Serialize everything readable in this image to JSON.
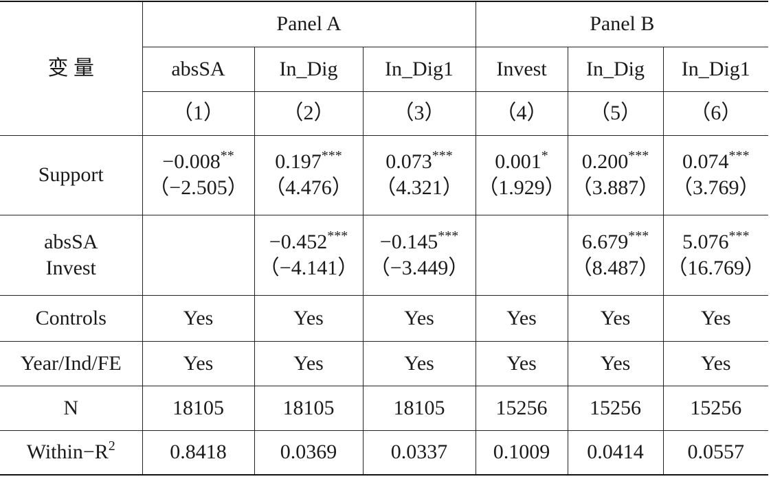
{
  "header": {
    "variable": "变 量",
    "panels": [
      "Panel A",
      "Panel B"
    ],
    "columns": [
      {
        "name": "absSA",
        "number": "（1）"
      },
      {
        "name": "In_Dig",
        "number": "（2）"
      },
      {
        "name": "In_Dig1",
        "number": "（3）"
      },
      {
        "name": "Invest",
        "number": "（4）"
      },
      {
        "name": "In_Dig",
        "number": "（5）"
      },
      {
        "name": "In_Dig1",
        "number": "（6）"
      }
    ]
  },
  "rows": [
    {
      "label": "Support",
      "cells": [
        {
          "coef": "−0.008",
          "stars": "**",
          "t": "（−2.505）"
        },
        {
          "coef": "0.197",
          "stars": "***",
          "t": "（4.476）"
        },
        {
          "coef": "0.073",
          "stars": "***",
          "t": "（4.321）"
        },
        {
          "coef": "0.001",
          "stars": "*",
          "t": "（1.929）"
        },
        {
          "coef": "0.200",
          "stars": "***",
          "t": "（3.887）"
        },
        {
          "coef": "0.074",
          "stars": "***",
          "t": "（3.769）"
        }
      ]
    },
    {
      "label": [
        "absSA",
        "Invest"
      ],
      "cells": [
        null,
        {
          "coef": "−0.452",
          "stars": "***",
          "t": "（−4.141）"
        },
        {
          "coef": "−0.145",
          "stars": "***",
          "t": "（−3.449）"
        },
        null,
        {
          "coef": "6.679",
          "stars": "***",
          "t": "（8.487）"
        },
        {
          "coef": "5.076",
          "stars": "***",
          "t": "（16.769）"
        }
      ]
    },
    {
      "label": "Controls",
      "cells": [
        "Yes",
        "Yes",
        "Yes",
        "Yes",
        "Yes",
        "Yes"
      ]
    },
    {
      "label": "Year/Ind/FE",
      "cells": [
        "Yes",
        "Yes",
        "Yes",
        "Yes",
        "Yes",
        "Yes"
      ]
    },
    {
      "label": "N",
      "cells": [
        "18105",
        "18105",
        "18105",
        "15256",
        "15256",
        "15256"
      ]
    },
    {
      "label": {
        "text": "Within−R",
        "sup": "2"
      },
      "cells": [
        "0.8418",
        "0.0369",
        "0.0337",
        "0.1009",
        "0.0414",
        "0.0557"
      ]
    }
  ]
}
